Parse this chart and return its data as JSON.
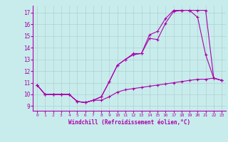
{
  "xlabel": "Windchill (Refroidissement éolien,°C)",
  "bg_color": "#c8ecec",
  "grid_color": "#b0d0d0",
  "line_color": "#aa00aa",
  "x_ticks": [
    0,
    1,
    2,
    3,
    4,
    5,
    6,
    7,
    8,
    9,
    10,
    11,
    12,
    13,
    14,
    15,
    16,
    17,
    18,
    19,
    20,
    21,
    22,
    23
  ],
  "y_ticks": [
    9,
    10,
    11,
    12,
    13,
    14,
    15,
    16,
    17
  ],
  "xlim": [
    -0.5,
    23.5
  ],
  "ylim": [
    8.6,
    17.6
  ],
  "line1_x": [
    0,
    1,
    2,
    3,
    4,
    5,
    6,
    7,
    8,
    9,
    10,
    11,
    12,
    13,
    14,
    15,
    16,
    17,
    18,
    19,
    20,
    21,
    22,
    23
  ],
  "line1_y": [
    10.8,
    10.0,
    10.0,
    10.0,
    10.0,
    9.4,
    9.3,
    9.5,
    9.5,
    9.8,
    10.2,
    10.4,
    10.5,
    10.6,
    10.7,
    10.8,
    10.9,
    11.0,
    11.1,
    11.2,
    11.3,
    11.3,
    11.4,
    11.2
  ],
  "line2_x": [
    0,
    1,
    2,
    3,
    4,
    5,
    6,
    7,
    8,
    9,
    10,
    11,
    12,
    13,
    14,
    15,
    16,
    17,
    18,
    19,
    20,
    21,
    22,
    23
  ],
  "line2_y": [
    10.8,
    10.0,
    10.0,
    10.0,
    10.0,
    9.4,
    9.3,
    9.5,
    9.8,
    11.1,
    12.5,
    13.0,
    13.4,
    13.5,
    14.8,
    14.7,
    16.1,
    17.1,
    17.2,
    17.2,
    16.6,
    13.4,
    11.4,
    11.2
  ],
  "line3_x": [
    0,
    1,
    2,
    3,
    4,
    5,
    6,
    7,
    8,
    9,
    10,
    11,
    12,
    13,
    14,
    15,
    16,
    17,
    18,
    19,
    20,
    21,
    22,
    23
  ],
  "line3_y": [
    10.8,
    10.0,
    10.0,
    10.0,
    10.0,
    9.4,
    9.3,
    9.5,
    9.8,
    11.1,
    12.5,
    13.0,
    13.5,
    13.5,
    15.1,
    15.4,
    16.5,
    17.2,
    17.2,
    17.2,
    17.2,
    17.2,
    11.4,
    11.2
  ]
}
